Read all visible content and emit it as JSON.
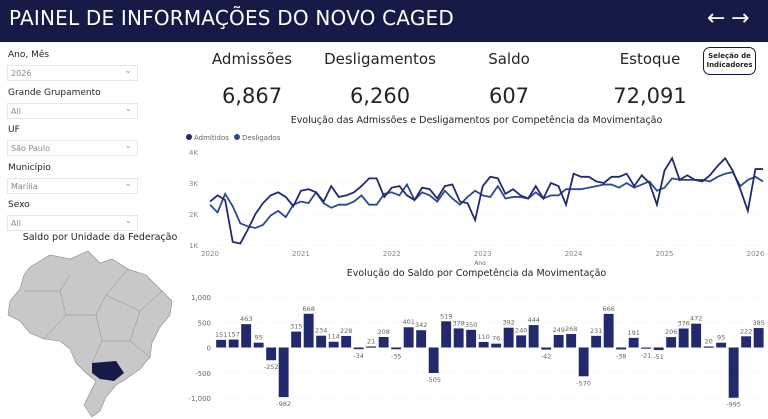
{
  "header": {
    "title": "PAINEL DE INFORMAÇÕES DO NOVO CAGED",
    "back": "←",
    "forward": "→"
  },
  "filters": [
    {
      "label": "Ano, Mês",
      "value": "2026"
    },
    {
      "label": "Grande Grupamento",
      "value": "All"
    },
    {
      "label": "UF",
      "value": "São Paulo"
    },
    {
      "label": "Município",
      "value": "Marília"
    },
    {
      "label": "Sexo",
      "value": "All"
    }
  ],
  "kpis": [
    {
      "label": "Admissões",
      "value": "6,867"
    },
    {
      "label": "Desligamentos",
      "value": "6,260"
    },
    {
      "label": "Saldo",
      "value": "607"
    },
    {
      "label": "Estoque",
      "value": "72,091"
    }
  ],
  "selection_button": "Seleção de Indicadores",
  "map": {
    "title": "Saldo por Unidade da Federação",
    "highlight_color": "#151a47",
    "base_color": "#c8c8c8"
  },
  "chart_data": [
    {
      "type": "line",
      "title": "Evolução das Admissões e Desligamentos por Competência da Movimentação",
      "xlabel": "Ano",
      "ylabel": "",
      "x_ticks": [
        "2020",
        "2021",
        "2022",
        "2023",
        "2024",
        "2025",
        "2026"
      ],
      "y_ticks": [
        "1K",
        "2K",
        "3K",
        "4K"
      ],
      "ylim": [
        1000,
        4000
      ],
      "legend": "top-left",
      "series": [
        {
          "name": "Admitidos",
          "color": "#232a6b",
          "values": [
            2400,
            2600,
            2450,
            1100,
            1050,
            1500,
            2000,
            2350,
            2600,
            2700,
            2550,
            2250,
            2750,
            2800,
            2700,
            2400,
            2900,
            2550,
            2600,
            2700,
            2900,
            3150,
            3150,
            2550,
            2850,
            2900,
            2600,
            2450,
            2850,
            2800,
            2500,
            2900,
            2950,
            2400,
            2350,
            1800,
            2900,
            3200,
            3150,
            2650,
            2800,
            2600,
            2500,
            2900,
            2500,
            3000,
            2900,
            2300,
            3300,
            3200,
            3200,
            3050,
            3000,
            3200,
            3200,
            3300,
            2900,
            3250,
            3000,
            2300,
            3400,
            3800,
            3100,
            3250,
            3100,
            3050,
            3250,
            3550,
            3800,
            3400,
            2800,
            2100,
            3450,
            3450
          ]
        },
        {
          "name": "Desligados",
          "color": "#2e4a8c",
          "values": [
            2300,
            2050,
            2650,
            2250,
            1700,
            1600,
            1550,
            1650,
            1950,
            2100,
            1900,
            2300,
            2400,
            2350,
            2700,
            2350,
            2200,
            2300,
            2300,
            2400,
            2600,
            2300,
            2300,
            2650,
            2700,
            2600,
            2950,
            2450,
            2700,
            2600,
            2400,
            2750,
            2500,
            2300,
            2550,
            2750,
            2600,
            2550,
            2900,
            2500,
            2550,
            2550,
            2500,
            2700,
            2500,
            2600,
            2600,
            2800,
            2800,
            2800,
            2850,
            2900,
            2950,
            2950,
            2850,
            3000,
            2850,
            2950,
            3050,
            2750,
            2850,
            3150,
            3100,
            3100,
            3100,
            3100,
            3050,
            3200,
            3300,
            3350,
            2900,
            3100,
            3200,
            3050
          ]
        }
      ]
    },
    {
      "type": "bar",
      "title": "Evolução do Saldo por Competência da Movimentação",
      "y_ticks": [
        "-1,000",
        "-500",
        "0",
        "500",
        "1,000"
      ],
      "ylim": [
        -1000,
        1000
      ],
      "color": "#232a6b",
      "values": [
        151,
        157,
        463,
        95,
        -252,
        -982,
        315,
        668,
        234,
        114,
        228,
        -34,
        21,
        208,
        -35,
        401,
        342,
        -505,
        519,
        378,
        350,
        110,
        76,
        392,
        240,
        444,
        -42,
        249,
        268,
        -570,
        231,
        666,
        -38,
        191,
        -21,
        -51,
        206,
        376,
        472,
        20,
        95,
        -995,
        222,
        385
      ]
    }
  ]
}
